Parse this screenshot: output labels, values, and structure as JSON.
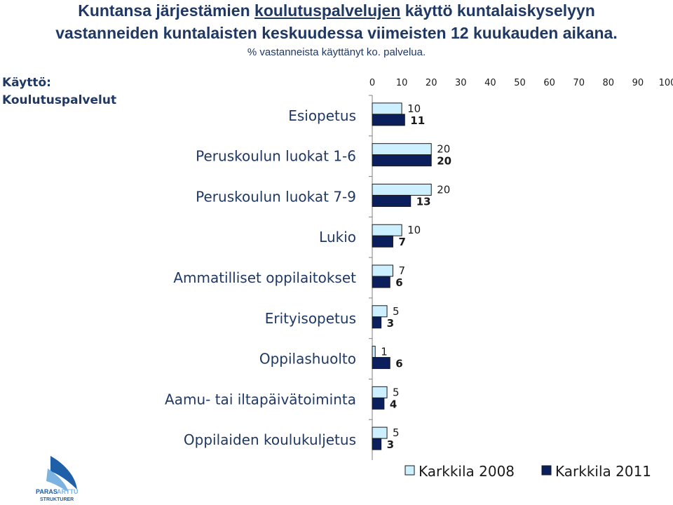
{
  "header": {
    "title_part1": "Kuntansa järjestämien ",
    "title_underlined": "koulutuspalvelujen",
    "title_part2": " käyttö kuntalaiskyselyyn",
    "title_line2": "vastanneiden kuntalaisten keskuudessa viimeisten 12 kuukauden aikana.",
    "subtitle": "% vastanneista käyttänyt ko. palvelua."
  },
  "side_label": {
    "line1": "Käyttö:",
    "line2": "Koulutuspalvelut"
  },
  "logo": {
    "text1": "PARAS",
    "text2": "ARTTU",
    "text3": "STRUKTURER"
  },
  "colors": {
    "series_2008": "#ccf0ff",
    "series_2011": "#0a1f5c",
    "text": "#1f3864"
  },
  "chart_data": {
    "type": "bar",
    "orientation": "horizontal",
    "categories": [
      "Esiopetus",
      "Peruskoulun luokat 1-6",
      "Peruskoulun luokat 7-9",
      "Lukio",
      "Ammatilliset oppilaitokset",
      "Erityisopetus",
      "Oppilashuolto",
      "Aamu- tai iltapäivätoiminta",
      "Oppilaiden koulukuljetus"
    ],
    "series": [
      {
        "name": "Karkkila 2008",
        "values": [
          10,
          20,
          20,
          10,
          7,
          5,
          1,
          5,
          5
        ]
      },
      {
        "name": "Karkkila 2011",
        "values": [
          11,
          20,
          13,
          7,
          6,
          3,
          6,
          4,
          3
        ]
      }
    ],
    "xlim": [
      0,
      100
    ],
    "xticks": [
      0,
      10,
      20,
      30,
      40,
      50,
      60,
      70,
      80,
      90,
      100
    ],
    "axis_position": "top",
    "legend_position": "bottom-right",
    "grid": false
  }
}
